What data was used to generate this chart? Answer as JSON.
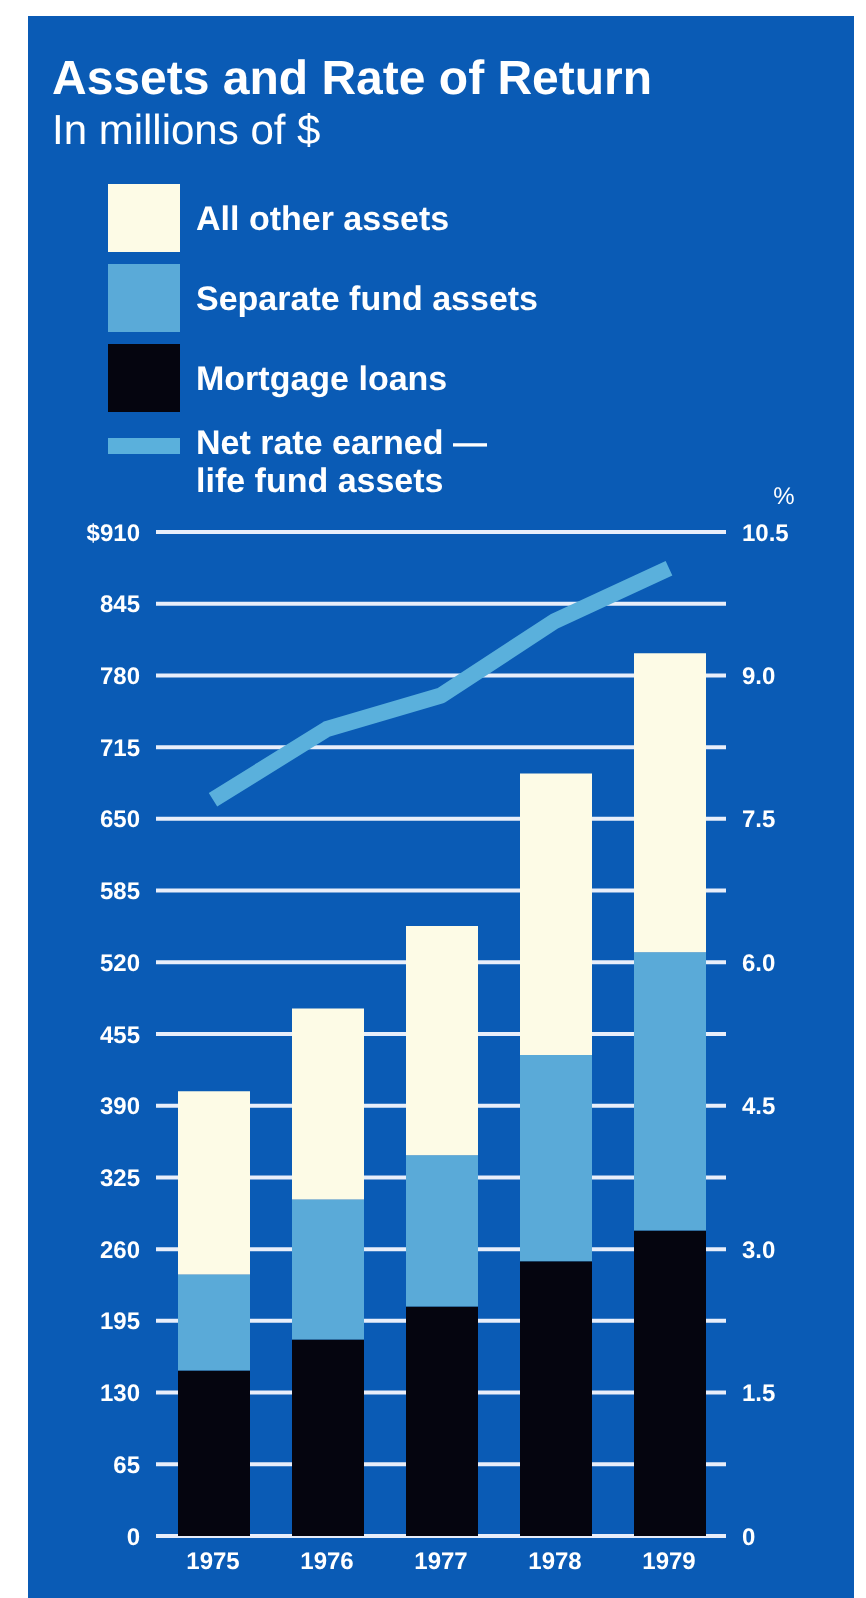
{
  "chart_data": {
    "type": "bar",
    "title": "Assets and Rate of Return",
    "subtitle": "In millions of $",
    "y2label": "%",
    "categories": [
      "1975",
      "1976",
      "1977",
      "1978",
      "1979"
    ],
    "stacked": true,
    "series": [
      {
        "name": "Mortgage loans",
        "color": "#05050f",
        "values": [
          150,
          178,
          208,
          249,
          277
        ]
      },
      {
        "name": "Separate fund assets",
        "color": "#5aaad8",
        "values": [
          87,
          127,
          137,
          187,
          252
        ]
      },
      {
        "name": "All other assets",
        "color": "#fdfbe6",
        "values": [
          166,
          173,
          208,
          255,
          271
        ]
      },
      {
        "name": "Net rate earned —\nlife fund assets",
        "type": "line",
        "axis": "y2",
        "color": "#5ab0dc",
        "values": [
          7.7,
          8.44,
          8.79,
          9.57,
          10.12
        ]
      }
    ],
    "ylim": [
      0,
      910
    ],
    "yticks": [
      0,
      65,
      130,
      195,
      260,
      325,
      390,
      455,
      520,
      585,
      650,
      715,
      780,
      845,
      {
        "value": 910,
        "label": "$910"
      }
    ],
    "y2lim": [
      0,
      10.5
    ],
    "y2ticks": [
      0,
      1.5,
      {
        "value": 3,
        "label": "3.0"
      },
      4.5,
      {
        "value": 6,
        "label": "6.0"
      },
      7.5,
      {
        "value": 9,
        "label": "9.0"
      },
      10.5
    ],
    "grid": "y",
    "legend": "top",
    "marker": "none"
  }
}
